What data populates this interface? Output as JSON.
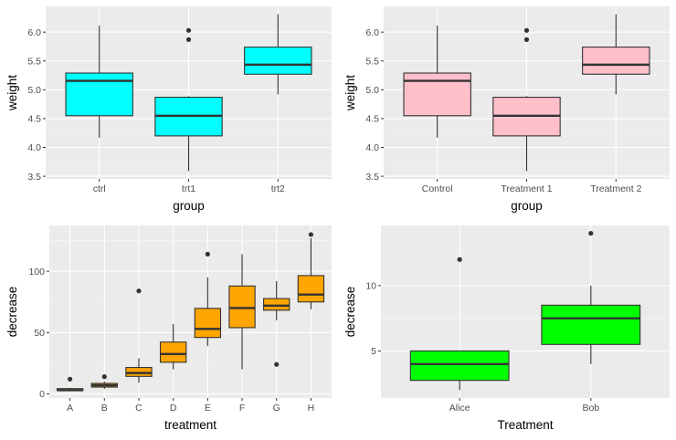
{
  "chart_data": [
    {
      "type": "box",
      "position": "top-left",
      "xlabel": "group",
      "ylabel": "weight",
      "categories": [
        "ctrl",
        "trt1",
        "trt2"
      ],
      "yticks": [
        3.5,
        4.0,
        4.5,
        5.0,
        5.5,
        6.0
      ],
      "ytick_labels": [
        "3.5",
        "4.0",
        "4.5",
        "5.0",
        "5.5",
        "6.0"
      ],
      "ylim": [
        3.454,
        6.446
      ],
      "fill": "#00FFFF",
      "boxes": [
        {
          "category": "ctrl",
          "lower": 4.17,
          "q1": 4.55,
          "median": 5.155,
          "q3": 5.29,
          "upper": 6.11,
          "outliers": []
        },
        {
          "category": "trt1",
          "lower": 3.59,
          "q1": 4.2,
          "median": 4.55,
          "q3": 4.87,
          "upper": 4.89,
          "outliers": [
            5.87,
            6.03
          ]
        },
        {
          "category": "trt2",
          "lower": 4.92,
          "q1": 5.27,
          "median": 5.435,
          "q3": 5.74,
          "upper": 6.31,
          "outliers": []
        }
      ]
    },
    {
      "type": "box",
      "position": "top-right",
      "xlabel": "group",
      "ylabel": "weight",
      "categories": [
        "Control",
        "Treatment 1",
        "Treatment 2"
      ],
      "yticks": [
        3.5,
        4.0,
        4.5,
        5.0,
        5.5,
        6.0
      ],
      "ytick_labels": [
        "3.5",
        "4.0",
        "4.5",
        "5.0",
        "5.5",
        "6.0"
      ],
      "ylim": [
        3.454,
        6.446
      ],
      "fill": "#FFC0CB",
      "boxes": [
        {
          "category": "Control",
          "lower": 4.17,
          "q1": 4.55,
          "median": 5.155,
          "q3": 5.29,
          "upper": 6.11,
          "outliers": []
        },
        {
          "category": "Treatment 1",
          "lower": 3.59,
          "q1": 4.2,
          "median": 4.55,
          "q3": 4.87,
          "upper": 4.89,
          "outliers": [
            5.87,
            6.03
          ]
        },
        {
          "category": "Treatment 2",
          "lower": 4.92,
          "q1": 5.27,
          "median": 5.435,
          "q3": 5.74,
          "upper": 6.31,
          "outliers": []
        }
      ]
    },
    {
      "type": "box",
      "position": "bottom-left",
      "xlabel": "treatment",
      "ylabel": "decrease",
      "categories": [
        "A",
        "B",
        "C",
        "D",
        "E",
        "F",
        "G",
        "H"
      ],
      "yticks": [
        0,
        50,
        100
      ],
      "ytick_labels": [
        "0",
        "50",
        "100"
      ],
      "ylim": [
        -3.4,
        137.4
      ],
      "fill": "#FFA500",
      "boxes": [
        {
          "category": "A",
          "lower": 2,
          "q1": 2.75,
          "median": 3,
          "q3": 4.25,
          "upper": 5,
          "outliers": [
            12
          ]
        },
        {
          "category": "B",
          "lower": 4,
          "q1": 5.5,
          "median": 7,
          "q3": 8.5,
          "upper": 10,
          "outliers": [
            14
          ]
        },
        {
          "category": "C",
          "lower": 9,
          "q1": 14.25,
          "median": 17,
          "q3": 21.5,
          "upper": 29,
          "outliers": [
            84
          ]
        },
        {
          "category": "D",
          "lower": 20,
          "q1": 25.75,
          "median": 32.5,
          "q3": 42.25,
          "upper": 57,
          "outliers": []
        },
        {
          "category": "E",
          "lower": 39,
          "q1": 46,
          "median": 53,
          "q3": 69.75,
          "upper": 95,
          "outliers": [
            114
          ]
        },
        {
          "category": "F",
          "lower": 20,
          "q1": 54,
          "median": 70,
          "q3": 88,
          "upper": 114,
          "outliers": []
        },
        {
          "category": "G",
          "lower": 60,
          "q1": 68.25,
          "median": 72,
          "q3": 77.75,
          "upper": 92,
          "outliers": [
            24
          ]
        },
        {
          "category": "H",
          "lower": 69,
          "q1": 75,
          "median": 81,
          "q3": 96.5,
          "upper": 127,
          "outliers": [
            130
          ]
        }
      ]
    },
    {
      "type": "box",
      "position": "bottom-right",
      "xlabel": "Treatment",
      "ylabel": "decrease",
      "categories": [
        "Alice",
        "Bob"
      ],
      "yticks": [
        5,
        10
      ],
      "ytick_labels": [
        "5",
        "10"
      ],
      "ylim": [
        1.4,
        14.6
      ],
      "fill": "#00FF00",
      "boxes": [
        {
          "category": "Alice",
          "lower": 2,
          "q1": 2.75,
          "median": 4,
          "q3": 5,
          "upper": 5,
          "outliers": [
            12
          ]
        },
        {
          "category": "Bob",
          "lower": 4,
          "q1": 5.5,
          "median": 7.5,
          "q3": 8.5,
          "upper": 10,
          "outliers": [
            14
          ]
        }
      ]
    }
  ],
  "style": {
    "panel_bg": "#EBEBEB",
    "grid_major": "#FFFFFF",
    "grid_minor": "#F5F5F5",
    "box_stroke": "#333333",
    "point_color": "#333333"
  }
}
